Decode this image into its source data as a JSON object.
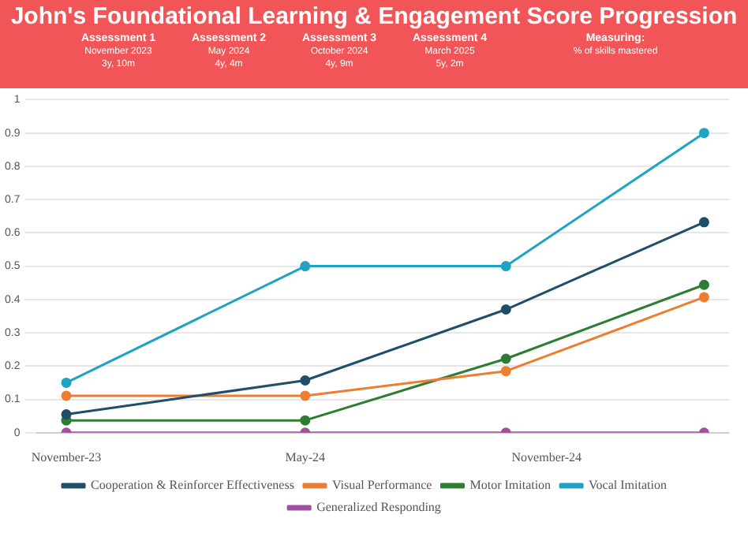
{
  "chart_data": {
    "type": "line",
    "title": "John's Foundational Learning & Engagement Score Progression",
    "annotations": [
      "Assessment 1\nNovember 2023\n3y, 10m",
      "Assessment 2\nMay 2024\n4y, 4m",
      "Assessment 3\nOctober 2024\n4y, 9m",
      "Assessment 4\nMarch 2025\n5y, 2m",
      "Measuring:\n% of skills mastered"
    ],
    "x": [
      "2023-11-01",
      "2024-05-01",
      "2024-10-01",
      "2025-03-01"
    ],
    "xlim": [
      "2023-10-10",
      "2025-03-20"
    ],
    "xticks": [
      {
        "value": "2023-11-01",
        "label": "November-23"
      },
      {
        "value": "2024-05-01",
        "label": "May-24"
      },
      {
        "value": "2024-11-01",
        "label": "November-24"
      }
    ],
    "ylim": [
      0,
      1
    ],
    "yticks": [
      0,
      0.1,
      0.2,
      0.3,
      0.4,
      0.5,
      0.6,
      0.7,
      0.8,
      0.9,
      1
    ],
    "grid": "y",
    "legend": "bottom",
    "marker": "circle",
    "line_style": "solid",
    "series": [
      {
        "name": "Cooperation & Reinforcer Effectiveness",
        "color": "#1f4e6b",
        "values": [
          0.055,
          0.157,
          0.37,
          0.632
        ]
      },
      {
        "name": "Visual Performance",
        "color": "#ed7d31",
        "values": [
          0.111,
          0.111,
          0.185,
          0.407
        ]
      },
      {
        "name": "Motor Imitation",
        "color": "#2e7d32",
        "values": [
          0.037,
          0.037,
          0.222,
          0.444
        ]
      },
      {
        "name": "Vocal Imitation",
        "color": "#1fa3c4",
        "values": [
          0.15,
          0.5,
          0.5,
          0.9
        ]
      },
      {
        "name": "Generalized Responding",
        "color": "#a0509f",
        "values": [
          0,
          0,
          0,
          0
        ]
      }
    ]
  }
}
